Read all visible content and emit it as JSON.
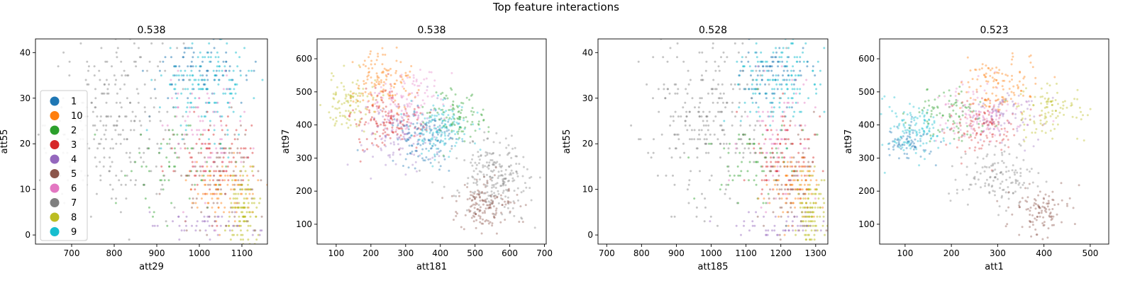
{
  "figure_title": "Top feature interactions",
  "palette": {
    "1": "#1f77b4",
    "10": "#ff7f0e",
    "2": "#2ca02c",
    "3": "#d62728",
    "4": "#9467bd",
    "5": "#8c564b",
    "6": "#e377c2",
    "7": "#7f7f7f",
    "8": "#bcbd22",
    "9": "#17becf"
  },
  "legend": {
    "placement": "center-left of first panel",
    "entries": [
      "1",
      "10",
      "2",
      "3",
      "4",
      "5",
      "6",
      "7",
      "8",
      "9"
    ]
  },
  "chart_data": [
    {
      "type": "scatter",
      "title": "0.538",
      "xlabel": "att29",
      "ylabel": "att55",
      "xlim": [
        615,
        1160
      ],
      "ylim": [
        -2,
        43
      ],
      "xticks": [
        700,
        800,
        900,
        1000,
        1100
      ],
      "yticks": [
        0,
        10,
        20,
        30,
        40
      ],
      "grid": false,
      "clusters": [
        {
          "class": "9",
          "cx": 1020,
          "cy": 33,
          "sx": 55,
          "sy": 5,
          "n": 160,
          "yInt": true,
          "alpha": 0.5
        },
        {
          "class": "1",
          "cx": 1000,
          "cy": 36,
          "sx": 60,
          "sy": 3.5,
          "n": 80,
          "yInt": true,
          "alpha": 0.5
        },
        {
          "class": "7",
          "cx": 800,
          "cy": 25,
          "sx": 75,
          "sy": 10,
          "n": 260,
          "yInt": true,
          "alpha": 0.45
        },
        {
          "class": "6",
          "cx": 1010,
          "cy": 22,
          "sx": 55,
          "sy": 7,
          "n": 90,
          "yInt": true,
          "alpha": 0.45
        },
        {
          "class": "3",
          "cx": 1040,
          "cy": 17,
          "sx": 50,
          "sy": 5,
          "n": 90,
          "yInt": true,
          "alpha": 0.45
        },
        {
          "class": "2",
          "cx": 960,
          "cy": 16,
          "sx": 70,
          "sy": 6,
          "n": 70,
          "yInt": true,
          "alpha": 0.45
        },
        {
          "class": "5",
          "cx": 1050,
          "cy": 12,
          "sx": 45,
          "sy": 6,
          "n": 90,
          "yInt": true,
          "alpha": 0.45
        },
        {
          "class": "10",
          "cx": 1060,
          "cy": 10,
          "sx": 40,
          "sy": 4,
          "n": 90,
          "yInt": true,
          "alpha": 0.45
        },
        {
          "class": "8",
          "cx": 1105,
          "cy": 5,
          "sx": 20,
          "sy": 4,
          "n": 120,
          "yInt": true,
          "alpha": 0.5
        },
        {
          "class": "4",
          "cx": 1020,
          "cy": 2,
          "sx": 60,
          "sy": 1.5,
          "n": 50,
          "yInt": true,
          "alpha": 0.45
        }
      ]
    },
    {
      "type": "scatter",
      "title": "0.538",
      "xlabel": "att181",
      "ylabel": "att97",
      "xlim": [
        45,
        705
      ],
      "ylim": [
        40,
        660
      ],
      "xticks": [
        100,
        200,
        300,
        400,
        500,
        600,
        700
      ],
      "yticks": [
        100,
        200,
        300,
        400,
        500,
        600
      ],
      "grid": false,
      "clusters": [
        {
          "class": "8",
          "cx": 140,
          "cy": 460,
          "sx": 40,
          "sy": 45,
          "n": 100,
          "yInt": false,
          "alpha": 0.4
        },
        {
          "class": "10",
          "cx": 240,
          "cy": 530,
          "sx": 40,
          "sy": 50,
          "n": 130,
          "yInt": false,
          "alpha": 0.4
        },
        {
          "class": "3",
          "cx": 250,
          "cy": 410,
          "sx": 50,
          "sy": 45,
          "n": 140,
          "yInt": false,
          "alpha": 0.4
        },
        {
          "class": "6",
          "cx": 300,
          "cy": 460,
          "sx": 55,
          "sy": 50,
          "n": 130,
          "yInt": false,
          "alpha": 0.35
        },
        {
          "class": "4",
          "cx": 290,
          "cy": 370,
          "sx": 55,
          "sy": 45,
          "n": 110,
          "yInt": false,
          "alpha": 0.35
        },
        {
          "class": "1",
          "cx": 360,
          "cy": 360,
          "sx": 45,
          "sy": 40,
          "n": 130,
          "yInt": false,
          "alpha": 0.4
        },
        {
          "class": "9",
          "cx": 400,
          "cy": 390,
          "sx": 45,
          "sy": 40,
          "n": 120,
          "yInt": false,
          "alpha": 0.4
        },
        {
          "class": "2",
          "cx": 440,
          "cy": 420,
          "sx": 40,
          "sy": 40,
          "n": 90,
          "yInt": false,
          "alpha": 0.4
        },
        {
          "class": "7",
          "cx": 560,
          "cy": 240,
          "sx": 55,
          "sy": 55,
          "n": 220,
          "yInt": false,
          "alpha": 0.4
        },
        {
          "class": "5",
          "cx": 530,
          "cy": 160,
          "sx": 40,
          "sy": 45,
          "n": 150,
          "yInt": false,
          "alpha": 0.4
        }
      ]
    },
    {
      "type": "scatter",
      "title": "0.528",
      "xlabel": "att185",
      "ylabel": "att55",
      "xlim": [
        675,
        1335
      ],
      "ylim": [
        -2,
        43
      ],
      "xticks": [
        700,
        800,
        900,
        1000,
        1100,
        1200,
        1300
      ],
      "yticks": [
        0,
        10,
        20,
        30,
        40
      ],
      "grid": false,
      "clusters": [
        {
          "class": "9",
          "cx": 1190,
          "cy": 33,
          "sx": 60,
          "sy": 5,
          "n": 160,
          "yInt": true,
          "alpha": 0.5
        },
        {
          "class": "1",
          "cx": 1170,
          "cy": 36,
          "sx": 60,
          "sy": 3.5,
          "n": 80,
          "yInt": true,
          "alpha": 0.5
        },
        {
          "class": "7",
          "cx": 980,
          "cy": 26,
          "sx": 90,
          "sy": 10,
          "n": 260,
          "yInt": true,
          "alpha": 0.45
        },
        {
          "class": "6",
          "cx": 1190,
          "cy": 22,
          "sx": 55,
          "sy": 7,
          "n": 90,
          "yInt": true,
          "alpha": 0.45
        },
        {
          "class": "3",
          "cx": 1210,
          "cy": 17,
          "sx": 55,
          "sy": 5,
          "n": 90,
          "yInt": true,
          "alpha": 0.45
        },
        {
          "class": "2",
          "cx": 1130,
          "cy": 16,
          "sx": 75,
          "sy": 6,
          "n": 70,
          "yInt": true,
          "alpha": 0.45
        },
        {
          "class": "5",
          "cx": 1230,
          "cy": 12,
          "sx": 45,
          "sy": 6,
          "n": 90,
          "yInt": true,
          "alpha": 0.45
        },
        {
          "class": "10",
          "cx": 1240,
          "cy": 10,
          "sx": 40,
          "sy": 4,
          "n": 90,
          "yInt": true,
          "alpha": 0.45
        },
        {
          "class": "8",
          "cx": 1285,
          "cy": 5,
          "sx": 22,
          "sy": 4,
          "n": 120,
          "yInt": true,
          "alpha": 0.5
        },
        {
          "class": "4",
          "cx": 1200,
          "cy": 2,
          "sx": 60,
          "sy": 1.5,
          "n": 50,
          "yInt": true,
          "alpha": 0.45
        }
      ]
    },
    {
      "type": "scatter",
      "title": "0.523",
      "xlabel": "att1",
      "ylabel": "att97",
      "xlim": [
        45,
        540
      ],
      "ylim": [
        40,
        660
      ],
      "xticks": [
        100,
        200,
        300,
        400,
        500
      ],
      "yticks": [
        100,
        200,
        300,
        400,
        500,
        600
      ],
      "grid": false,
      "clusters": [
        {
          "class": "9",
          "cx": 120,
          "cy": 380,
          "sx": 35,
          "sy": 40,
          "n": 130,
          "yInt": false,
          "alpha": 0.4
        },
        {
          "class": "1",
          "cx": 105,
          "cy": 350,
          "sx": 25,
          "sy": 30,
          "n": 70,
          "yInt": false,
          "alpha": 0.4
        },
        {
          "class": "2",
          "cx": 200,
          "cy": 440,
          "sx": 40,
          "sy": 40,
          "n": 90,
          "yInt": false,
          "alpha": 0.4
        },
        {
          "class": "6",
          "cx": 260,
          "cy": 430,
          "sx": 45,
          "sy": 45,
          "n": 120,
          "yInt": false,
          "alpha": 0.35
        },
        {
          "class": "3",
          "cx": 270,
          "cy": 390,
          "sx": 40,
          "sy": 40,
          "n": 120,
          "yInt": false,
          "alpha": 0.35
        },
        {
          "class": "10",
          "cx": 300,
          "cy": 520,
          "sx": 40,
          "sy": 45,
          "n": 120,
          "yInt": false,
          "alpha": 0.4
        },
        {
          "class": "4",
          "cx": 330,
          "cy": 420,
          "sx": 40,
          "sy": 40,
          "n": 80,
          "yInt": false,
          "alpha": 0.35
        },
        {
          "class": "8",
          "cx": 410,
          "cy": 440,
          "sx": 40,
          "sy": 45,
          "n": 100,
          "yInt": false,
          "alpha": 0.4
        },
        {
          "class": "7",
          "cx": 300,
          "cy": 250,
          "sx": 45,
          "sy": 45,
          "n": 130,
          "yInt": false,
          "alpha": 0.4
        },
        {
          "class": "5",
          "cx": 390,
          "cy": 140,
          "sx": 35,
          "sy": 35,
          "n": 110,
          "yInt": false,
          "alpha": 0.4
        }
      ]
    }
  ]
}
